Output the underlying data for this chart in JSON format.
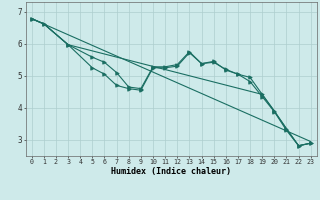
{
  "xlabel": "Humidex (Indice chaleur)",
  "ylabel": "",
  "xlim": [
    -0.5,
    23.5
  ],
  "ylim": [
    2.5,
    7.3
  ],
  "bg_color": "#ceeaea",
  "grid_color": "#aecece",
  "line_color": "#1a6e62",
  "yticks": [
    3,
    4,
    5,
    6,
    7
  ],
  "xticks": [
    0,
    1,
    2,
    3,
    4,
    5,
    6,
    7,
    8,
    9,
    10,
    11,
    12,
    13,
    14,
    15,
    16,
    17,
    18,
    19,
    20,
    21,
    22,
    23
  ],
  "lines": [
    {
      "x": [
        0,
        23
      ],
      "y": [
        6.78,
        2.95
      ],
      "has_markers": false
    },
    {
      "x": [
        0,
        1,
        3,
        5,
        6,
        7,
        8,
        9,
        10,
        11,
        12,
        13,
        14,
        15,
        16,
        17,
        18,
        19,
        20,
        21,
        22,
        23
      ],
      "y": [
        6.78,
        6.62,
        5.97,
        5.25,
        5.05,
        4.7,
        4.6,
        4.55,
        5.25,
        5.25,
        5.3,
        5.72,
        5.38,
        5.42,
        5.2,
        5.05,
        4.95,
        4.42,
        3.9,
        3.35,
        2.82,
        2.9
      ],
      "has_markers": true
    },
    {
      "x": [
        0,
        1,
        3,
        5,
        6,
        7,
        8,
        9,
        10,
        11,
        12,
        13,
        14,
        15,
        16,
        17,
        18,
        19,
        20,
        21,
        22,
        23
      ],
      "y": [
        6.78,
        6.62,
        5.97,
        5.58,
        5.42,
        5.1,
        4.65,
        4.6,
        5.28,
        5.28,
        5.35,
        5.75,
        5.38,
        5.45,
        5.18,
        5.05,
        4.82,
        4.35,
        3.88,
        3.3,
        2.82,
        2.9
      ],
      "has_markers": true
    },
    {
      "x": [
        0,
        1,
        3,
        19,
        20,
        21,
        22,
        23
      ],
      "y": [
        6.78,
        6.62,
        5.97,
        4.42,
        3.9,
        3.35,
        2.82,
        2.9
      ],
      "has_markers": false
    }
  ]
}
